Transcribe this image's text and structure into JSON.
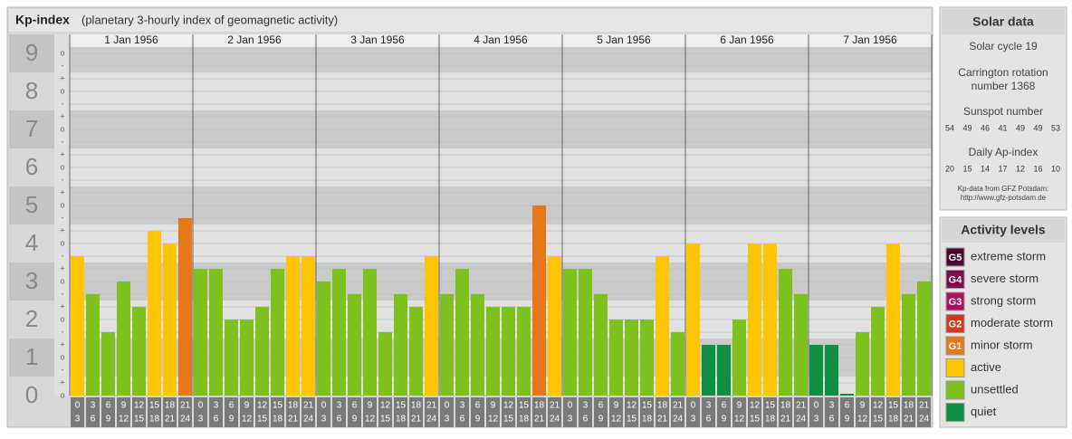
{
  "chart_data": {
    "type": "bar",
    "title": "Kp-index",
    "subtitle": "(planetary 3-hourly index of geomagnetic activity)",
    "categories": [
      "1 Jan 1956",
      "2 Jan 1956",
      "3 Jan 1956",
      "4 Jan 1956",
      "5 Jan 1956",
      "6 Jan 1956",
      "7 Jan 1956"
    ],
    "interval_starts": [
      0,
      3,
      6,
      9,
      12,
      15,
      18,
      21
    ],
    "interval_ends": [
      3,
      6,
      9,
      12,
      15,
      18,
      21,
      24
    ],
    "values": [
      [
        3.667,
        2.667,
        1.667,
        3,
        2.333,
        4.333,
        4,
        4.667
      ],
      [
        3.333,
        3.333,
        2,
        2,
        2.333,
        3.333,
        3.667,
        3.667
      ],
      [
        3,
        3.333,
        2.667,
        3.333,
        1.667,
        2.667,
        2.333,
        3.667
      ],
      [
        2.667,
        3.333,
        2.667,
        2.333,
        2.333,
        2.333,
        5,
        3.667
      ],
      [
        3.333,
        3.333,
        2.667,
        2,
        2,
        2,
        3.667,
        1.667
      ],
      [
        4,
        1.333,
        1.333,
        2,
        4,
        4,
        3.333,
        2.667
      ],
      [
        1.333,
        1.333,
        0,
        1.667,
        2.333,
        4,
        2.667,
        3
      ]
    ],
    "colors": [
      [
        "#fec500",
        "#7dc11f",
        "#7dc11f",
        "#7dc11f",
        "#7dc11f",
        "#fec500",
        "#fec500",
        "#e67817"
      ],
      [
        "#7dc11f",
        "#7dc11f",
        "#7dc11f",
        "#7dc11f",
        "#7dc11f",
        "#7dc11f",
        "#fec500",
        "#fec500"
      ],
      [
        "#7dc11f",
        "#7dc11f",
        "#7dc11f",
        "#7dc11f",
        "#7dc11f",
        "#7dc11f",
        "#7dc11f",
        "#fec500"
      ],
      [
        "#7dc11f",
        "#7dc11f",
        "#7dc11f",
        "#7dc11f",
        "#7dc11f",
        "#7dc11f",
        "#e67817",
        "#fec500"
      ],
      [
        "#7dc11f",
        "#7dc11f",
        "#7dc11f",
        "#7dc11f",
        "#7dc11f",
        "#7dc11f",
        "#fec500",
        "#7dc11f"
      ],
      [
        "#fec500",
        "#0e8f45",
        "#0e8f45",
        "#7dc11f",
        "#fec500",
        "#fec500",
        "#7dc11f",
        "#7dc11f"
      ],
      [
        "#0e8f45",
        "#0e8f45",
        "#0e8f45",
        "#7dc11f",
        "#7dc11f",
        "#fec500",
        "#7dc11f",
        "#7dc11f"
      ]
    ],
    "ylim": [
      0,
      9.5
    ],
    "yticks": [
      0,
      1,
      2,
      3,
      4,
      5,
      6,
      7,
      8,
      9
    ],
    "minor_yticks": [
      {
        "value": 0,
        "label": "o"
      },
      {
        "value": 0.333,
        "label": "+"
      },
      {
        "value": 0.667,
        "label": "-"
      },
      {
        "value": 1,
        "label": "o"
      },
      {
        "value": 1.333,
        "label": "+"
      },
      {
        "value": 1.667,
        "label": "-"
      },
      {
        "value": 2,
        "label": "o"
      },
      {
        "value": 2.333,
        "label": "+"
      },
      {
        "value": 2.667,
        "label": "-"
      },
      {
        "value": 3,
        "label": "o"
      },
      {
        "value": 3.333,
        "label": "+"
      },
      {
        "value": 3.667,
        "label": "-"
      },
      {
        "value": 4,
        "label": "o"
      },
      {
        "value": 4.333,
        "label": "+"
      },
      {
        "value": 4.667,
        "label": "-"
      },
      {
        "value": 5,
        "label": "o"
      },
      {
        "value": 5.333,
        "label": "+"
      },
      {
        "value": 5.667,
        "label": "-"
      },
      {
        "value": 6,
        "label": "o"
      },
      {
        "value": 6.333,
        "label": "+"
      },
      {
        "value": 6.667,
        "label": "-"
      },
      {
        "value": 7,
        "label": "o"
      },
      {
        "value": 7.333,
        "label": "+"
      },
      {
        "value": 7.667,
        "label": "-"
      },
      {
        "value": 8,
        "label": "o"
      },
      {
        "value": 8.333,
        "label": "+"
      },
      {
        "value": 8.667,
        "label": "-"
      },
      {
        "value": 9,
        "label": "o"
      }
    ],
    "grid": true
  },
  "solar_data": {
    "title": "Solar data",
    "solar_cycle": "Solar cycle 19",
    "carrington": [
      "Carrington rotation",
      "number 1368"
    ],
    "sunspot_title": "Sunspot number",
    "sunspot": [
      54,
      49,
      46,
      41,
      49,
      49,
      53
    ],
    "ap_title": "Daily Ap-index",
    "ap": [
      20,
      15,
      14,
      17,
      12,
      16,
      10
    ],
    "source": [
      "Kp-data from GFZ Potsdam:",
      "http://www.gfz-potsdam.de"
    ]
  },
  "activity_levels": {
    "title": "Activity levels",
    "items": [
      {
        "badge": "G5",
        "label": "extreme storm",
        "color": "#4d0a2e"
      },
      {
        "badge": "G4",
        "label": "severe storm",
        "color": "#7a0d4c"
      },
      {
        "badge": "G3",
        "label": "strong storm",
        "color": "#b0105e"
      },
      {
        "badge": "G2",
        "label": "moderate storm",
        "color": "#d43a1e"
      },
      {
        "badge": "G1",
        "label": "minor storm",
        "color": "#e67817"
      },
      {
        "label": "active",
        "color": "#fec500"
      },
      {
        "label": "unsettled",
        "color": "#7dc11f"
      },
      {
        "label": "quiet",
        "color": "#0e8f45"
      }
    ]
  }
}
